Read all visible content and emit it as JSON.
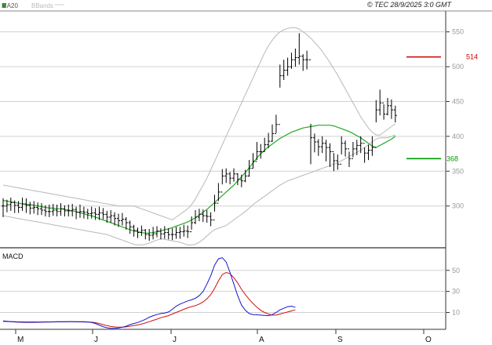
{
  "header": {
    "legend_ma": "MA20",
    "legend_bbands": "BBands",
    "source": "© TEC 28/9/2025 3:0 GMT"
  },
  "colors": {
    "price_bars": "#000000",
    "ma20": "#22aa22",
    "bbands": "#b8b8b8",
    "macd_line": "#1515cc",
    "signal_line": "#cc1111",
    "resistance": "#cc0000",
    "support": "#009900",
    "grid": "#d0d0d0"
  },
  "chart_data": [
    {
      "type": "ohlc",
      "name": "price",
      "ylim": [
        240,
        580
      ],
      "y_ticks": [
        300,
        350,
        400,
        450,
        500,
        550
      ],
      "x_month_labels": [
        "M",
        "J",
        "J",
        "A",
        "S",
        "O"
      ],
      "legend_placement": "top-left",
      "grid": true,
      "close": [
        300,
        302,
        305,
        301,
        298,
        303,
        301,
        297,
        298,
        296,
        294,
        292,
        292,
        294,
        292,
        296,
        293,
        293,
        295,
        291,
        292,
        291,
        289,
        290,
        288,
        290,
        288,
        284,
        286,
        282,
        279,
        281,
        276,
        270,
        265,
        262,
        265,
        259,
        258,
        260,
        264,
        260,
        262,
        259,
        259,
        262,
        263,
        264,
        263,
        276,
        284,
        288,
        286,
        285,
        280,
        304,
        320,
        343,
        346,
        340,
        346,
        338,
        336,
        343,
        354,
        364,
        378,
        378,
        388,
        393,
        404,
        417,
        487,
        495,
        500,
        510,
        513,
        515,
        510,
        510,
        398,
        392,
        385,
        390,
        384,
        378,
        365,
        360,
        390,
        382,
        368,
        382,
        387,
        390,
        376,
        380,
        384,
        438,
        448,
        432,
        444,
        438,
        430
      ],
      "high": [
        311,
        309,
        312,
        308,
        307,
        312,
        311,
        306,
        307,
        305,
        304,
        301,
        302,
        303,
        302,
        304,
        301,
        302,
        303,
        299,
        302,
        299,
        296,
        299,
        297,
        299,
        297,
        293,
        294,
        291,
        289,
        290,
        284,
        279,
        273,
        269,
        272,
        267,
        267,
        270,
        271,
        268,
        271,
        268,
        268,
        270,
        270,
        273,
        272,
        285,
        294,
        296,
        295,
        294,
        291,
        316,
        333,
        353,
        354,
        349,
        354,
        347,
        345,
        352,
        366,
        376,
        392,
        389,
        398,
        405,
        417,
        431,
        503,
        510,
        513,
        520,
        526,
        548,
        518,
        523,
        418,
        404,
        396,
        400,
        395,
        390,
        376,
        374,
        400,
        394,
        378,
        392,
        395,
        400,
        384,
        388,
        400,
        452,
        467,
        446,
        455,
        453,
        444
      ],
      "low": [
        284,
        291,
        293,
        290,
        290,
        293,
        290,
        288,
        289,
        287,
        287,
        285,
        284,
        286,
        285,
        286,
        285,
        285,
        285,
        281,
        283,
        282,
        281,
        282,
        280,
        280,
        281,
        276,
        276,
        272,
        270,
        272,
        266,
        260,
        256,
        254,
        257,
        252,
        250,
        252,
        255,
        252,
        253,
        252,
        251,
        253,
        253,
        256,
        254,
        266,
        274,
        278,
        277,
        276,
        271,
        292,
        307,
        331,
        333,
        331,
        335,
        330,
        327,
        334,
        342,
        354,
        366,
        368,
        378,
        383,
        392,
        405,
        470,
        481,
        487,
        497,
        500,
        503,
        494,
        496,
        360,
        377,
        372,
        376,
        364,
        356,
        350,
        352,
        374,
        371,
        356,
        370,
        373,
        376,
        362,
        366,
        372,
        420,
        430,
        424,
        430,
        425,
        420
      ],
      "ma20": [
        308,
        307,
        306,
        305,
        304,
        303,
        302,
        302,
        301,
        300,
        299,
        298,
        297,
        297,
        296,
        296,
        295,
        294,
        293,
        292,
        290,
        289,
        287,
        286,
        284,
        282,
        280,
        278,
        276,
        274,
        272,
        270,
        268,
        266,
        264,
        263,
        262,
        261,
        261,
        262,
        263,
        264,
        266,
        267,
        269,
        271,
        273,
        275,
        277,
        280,
        283,
        287,
        291,
        295,
        300,
        305,
        310,
        315,
        320,
        325,
        330,
        336,
        342,
        348,
        355,
        362,
        369,
        375,
        380,
        385,
        389,
        393,
        397,
        400,
        403,
        406,
        408,
        410,
        412,
        413,
        414,
        415,
        416,
        416,
        416,
        416,
        415,
        413,
        411,
        409,
        407,
        404,
        401,
        398,
        394,
        390,
        386,
        384,
        387,
        390,
        393,
        396,
        400
      ],
      "bb_upper": [
        330,
        329,
        328,
        327,
        326,
        325,
        324,
        323,
        322,
        321,
        320,
        319,
        318,
        317,
        316,
        315,
        314,
        313,
        312,
        311,
        310,
        309,
        308,
        307,
        306,
        305,
        304,
        303,
        302,
        301,
        300,
        300,
        300,
        300,
        300,
        298,
        296,
        294,
        292,
        290,
        288,
        286,
        284,
        282,
        280,
        284,
        288,
        292,
        296,
        302,
        310,
        320,
        330,
        340,
        352,
        364,
        376,
        388,
        400,
        412,
        424,
        436,
        448,
        460,
        472,
        484,
        496,
        508,
        520,
        530,
        538,
        545,
        550,
        553,
        555,
        556,
        556,
        554,
        550,
        546,
        541,
        535,
        529,
        522,
        514,
        506,
        497,
        488,
        478,
        468,
        458,
        448,
        438,
        428,
        420,
        412,
        406,
        402,
        402,
        406,
        410,
        414,
        418
      ],
      "bb_lower": [
        286,
        285,
        284,
        283,
        282,
        281,
        280,
        279,
        278,
        277,
        276,
        275,
        274,
        273,
        272,
        271,
        270,
        269,
        268,
        267,
        266,
        265,
        264,
        263,
        262,
        261,
        260,
        259,
        257,
        255,
        253,
        251,
        249,
        247,
        245,
        244,
        244,
        245,
        247,
        249,
        251,
        253,
        252,
        251,
        250,
        249,
        248,
        246,
        244,
        244,
        245,
        248,
        252,
        257,
        262,
        266,
        268,
        270,
        272,
        276,
        280,
        284,
        288,
        292,
        297,
        302,
        306,
        310,
        314,
        318,
        322,
        326,
        330,
        333,
        336,
        338,
        340,
        342,
        344,
        346,
        348,
        350,
        352,
        354,
        356,
        358,
        360,
        362,
        365,
        368,
        371,
        374,
        377,
        380,
        384,
        388,
        392,
        396,
        398,
        398,
        398,
        400,
        402
      ],
      "resistance": {
        "value": 514,
        "label": "514"
      },
      "support": {
        "value": 368,
        "label": "368"
      }
    },
    {
      "type": "line",
      "name": "MACD",
      "title": "MACD",
      "ylim": [
        -6,
        70
      ],
      "y_ticks": [
        10,
        30,
        50
      ],
      "y_tick_labels": [
        "10",
        "30",
        "50"
      ],
      "series": [
        {
          "name": "MACD",
          "values": [
            2,
            1.6,
            1.3,
            1,
            0.8,
            0.7,
            0.6,
            0.6,
            0.6,
            0.7,
            0.8,
            0.9,
            1,
            1.1,
            1.2,
            1.2,
            1.2,
            1.2,
            1.2,
            1.1,
            1.1,
            1,
            0.9,
            0.5,
            -0.5,
            -2,
            -3.5,
            -4.5,
            -5,
            -5,
            -4.8,
            -4,
            -3,
            -1.5,
            -0.5,
            0.5,
            2,
            3.5,
            5.5,
            7,
            8,
            9,
            9.5,
            10.5,
            13,
            16,
            18,
            19.5,
            21,
            22,
            23.5,
            26,
            30,
            37,
            45,
            55,
            61,
            62,
            58,
            48,
            37,
            26,
            17,
            12,
            9,
            8,
            7.8,
            7.5,
            7.2,
            7,
            8,
            10,
            12.5,
            14,
            15.5,
            16,
            15
          ]
        },
        {
          "name": "Signal",
          "values": [
            1.5,
            1.4,
            1.3,
            1.2,
            1.1,
            1.1,
            1,
            1,
            1,
            1,
            1,
            1,
            1,
            1,
            1.1,
            1.1,
            1.1,
            1.2,
            1.2,
            1.2,
            1.2,
            1.2,
            1,
            0.8,
            0.3,
            -0.5,
            -1.5,
            -2.5,
            -3.3,
            -3.8,
            -4,
            -4,
            -3.7,
            -3,
            -2.5,
            -1.8,
            -1,
            0,
            1.2,
            2.5,
            3.7,
            5,
            6,
            7,
            8.5,
            10,
            11.5,
            13,
            14.5,
            15.5,
            16.5,
            18,
            20,
            23,
            27,
            33,
            40,
            46,
            48,
            47,
            43,
            38,
            32,
            27,
            22.5,
            18.5,
            15,
            12,
            10,
            8.5,
            7.5,
            7.5,
            8.5,
            9.5,
            10.5,
            11.5,
            12.5
          ]
        }
      ]
    }
  ]
}
